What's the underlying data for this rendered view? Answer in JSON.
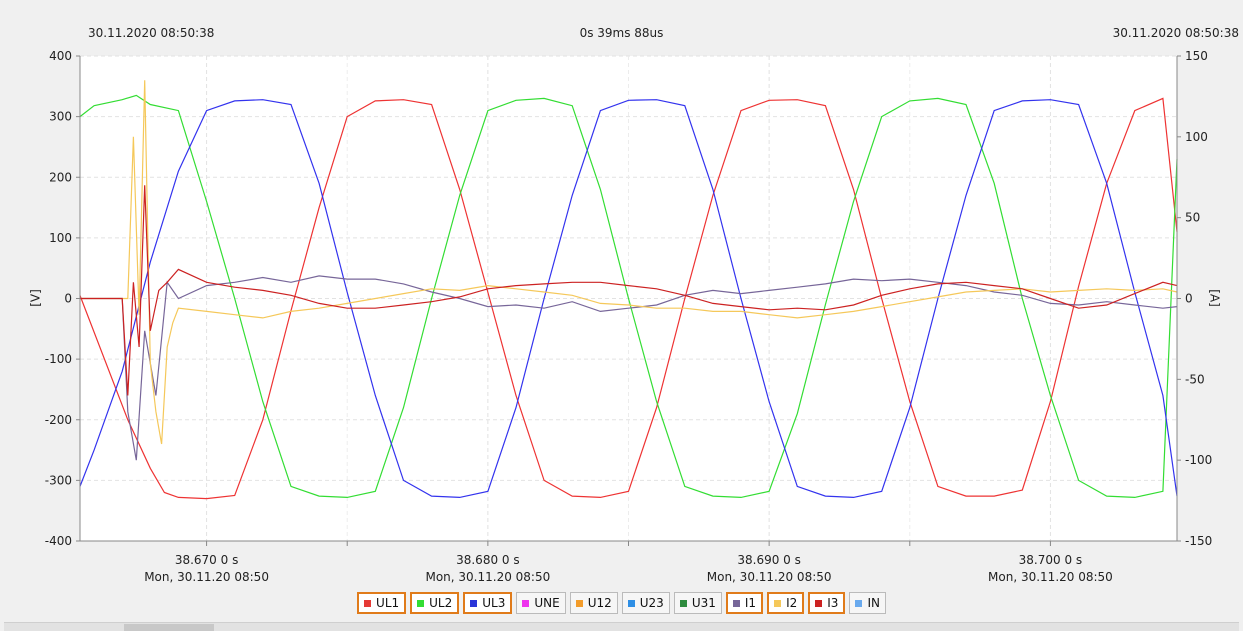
{
  "header": {
    "start_time": "30.11.2020 08:50:38",
    "duration": "0s 39ms 88us",
    "end_time": "30.11.2020 08:50:38"
  },
  "chart_data": {
    "type": "line",
    "left_axis": {
      "label": "[V]",
      "ylim": [
        -400,
        400
      ],
      "ticks": [
        "400",
        "300",
        "200",
        "100",
        "0",
        "-100",
        "-200",
        "-300",
        "-400"
      ]
    },
    "right_axis": {
      "label": "[A]",
      "ylim": [
        -150,
        150
      ],
      "ticks": [
        "150",
        "100",
        "50",
        "0",
        "-50",
        "-100",
        "-150"
      ]
    },
    "xlim": [
      38.6655,
      38.7045
    ],
    "x_ticks": [
      {
        "x": 38.67,
        "label": "38.670   0 s",
        "date": "Mon, 30.11.20 08:50"
      },
      {
        "x": 38.68,
        "label": "38.680   0 s",
        "date": "Mon, 30.11.20 08:50"
      },
      {
        "x": 38.69,
        "label": "38.690   0 s",
        "date": "Mon, 30.11.20 08:50"
      },
      {
        "x": 38.7,
        "label": "38.700   0 s",
        "date": "Mon, 30.11.20 08:50"
      }
    ],
    "grid": true,
    "legend_placement": "bottom-center",
    "series": [
      {
        "name": "UL1",
        "color": "#ee3333",
        "axis": "left",
        "points": [
          [
            38.6655,
            5
          ],
          [
            38.6672,
            -200
          ],
          [
            38.668,
            -280
          ],
          [
            38.6685,
            -320
          ],
          [
            38.669,
            -328
          ],
          [
            38.67,
            -330
          ],
          [
            38.671,
            -325
          ],
          [
            38.672,
            -200
          ],
          [
            38.673,
            -20
          ],
          [
            38.674,
            150
          ],
          [
            38.675,
            300
          ],
          [
            38.676,
            326
          ],
          [
            38.677,
            328
          ],
          [
            38.678,
            320
          ],
          [
            38.679,
            180
          ],
          [
            38.68,
            10
          ],
          [
            38.681,
            -160
          ],
          [
            38.682,
            -300
          ],
          [
            38.683,
            -326
          ],
          [
            38.684,
            -328
          ],
          [
            38.685,
            -318
          ],
          [
            38.686,
            -180
          ],
          [
            38.687,
            0
          ],
          [
            38.688,
            170
          ],
          [
            38.689,
            310
          ],
          [
            38.69,
            327
          ],
          [
            38.691,
            328
          ],
          [
            38.692,
            318
          ],
          [
            38.693,
            180
          ],
          [
            38.694,
            0
          ],
          [
            38.695,
            -170
          ],
          [
            38.696,
            -310
          ],
          [
            38.697,
            -326
          ],
          [
            38.698,
            -326
          ],
          [
            38.699,
            -316
          ],
          [
            38.7,
            -170
          ],
          [
            38.701,
            20
          ],
          [
            38.702,
            190
          ],
          [
            38.703,
            310
          ],
          [
            38.704,
            330
          ],
          [
            38.7045,
            110
          ]
        ]
      },
      {
        "name": "UL2",
        "color": "#33dd33",
        "axis": "left",
        "points": [
          [
            38.6655,
            300
          ],
          [
            38.666,
            318
          ],
          [
            38.667,
            328
          ],
          [
            38.6675,
            335
          ],
          [
            38.668,
            320
          ],
          [
            38.669,
            310
          ],
          [
            38.67,
            160
          ],
          [
            38.671,
            0
          ],
          [
            38.672,
            -170
          ],
          [
            38.673,
            -310
          ],
          [
            38.674,
            -326
          ],
          [
            38.675,
            -328
          ],
          [
            38.676,
            -318
          ],
          [
            38.677,
            -180
          ],
          [
            38.678,
            0
          ],
          [
            38.679,
            170
          ],
          [
            38.68,
            310
          ],
          [
            38.681,
            327
          ],
          [
            38.682,
            330
          ],
          [
            38.683,
            318
          ],
          [
            38.684,
            180
          ],
          [
            38.685,
            0
          ],
          [
            38.686,
            -170
          ],
          [
            38.687,
            -310
          ],
          [
            38.688,
            -326
          ],
          [
            38.689,
            -328
          ],
          [
            38.69,
            -318
          ],
          [
            38.691,
            -190
          ],
          [
            38.692,
            -10
          ],
          [
            38.693,
            160
          ],
          [
            38.694,
            300
          ],
          [
            38.695,
            326
          ],
          [
            38.696,
            330
          ],
          [
            38.697,
            320
          ],
          [
            38.698,
            190
          ],
          [
            38.699,
            0
          ],
          [
            38.7,
            -160
          ],
          [
            38.701,
            -300
          ],
          [
            38.702,
            -326
          ],
          [
            38.703,
            -328
          ],
          [
            38.704,
            -318
          ],
          [
            38.7045,
            230
          ]
        ]
      },
      {
        "name": "UL3",
        "color": "#3333ee",
        "axis": "left",
        "points": [
          [
            38.6655,
            -310
          ],
          [
            38.666,
            -250
          ],
          [
            38.667,
            -120
          ],
          [
            38.668,
            60
          ],
          [
            38.669,
            210
          ],
          [
            38.67,
            310
          ],
          [
            38.671,
            326
          ],
          [
            38.672,
            328
          ],
          [
            38.673,
            320
          ],
          [
            38.674,
            190
          ],
          [
            38.675,
            10
          ],
          [
            38.676,
            -160
          ],
          [
            38.677,
            -300
          ],
          [
            38.678,
            -326
          ],
          [
            38.679,
            -328
          ],
          [
            38.68,
            -318
          ],
          [
            38.681,
            -180
          ],
          [
            38.682,
            0
          ],
          [
            38.683,
            170
          ],
          [
            38.684,
            310
          ],
          [
            38.685,
            327
          ],
          [
            38.686,
            328
          ],
          [
            38.687,
            318
          ],
          [
            38.688,
            180
          ],
          [
            38.689,
            0
          ],
          [
            38.69,
            -170
          ],
          [
            38.691,
            -310
          ],
          [
            38.692,
            -326
          ],
          [
            38.693,
            -328
          ],
          [
            38.694,
            -318
          ],
          [
            38.695,
            -180
          ],
          [
            38.696,
            0
          ],
          [
            38.697,
            170
          ],
          [
            38.698,
            310
          ],
          [
            38.699,
            326
          ],
          [
            38.7,
            328
          ],
          [
            38.701,
            320
          ],
          [
            38.702,
            190
          ],
          [
            38.703,
            10
          ],
          [
            38.704,
            -160
          ],
          [
            38.7045,
            -326
          ]
        ]
      },
      {
        "name": "I1",
        "color": "#776699",
        "axis": "right",
        "points": [
          [
            38.6655,
            0
          ],
          [
            38.667,
            0
          ],
          [
            38.6672,
            -70
          ],
          [
            38.6675,
            -100
          ],
          [
            38.6678,
            -20
          ],
          [
            38.6682,
            -60
          ],
          [
            38.6686,
            10
          ],
          [
            38.669,
            0
          ],
          [
            38.67,
            8
          ],
          [
            38.671,
            10
          ],
          [
            38.672,
            13
          ],
          [
            38.673,
            10
          ],
          [
            38.674,
            14
          ],
          [
            38.675,
            12
          ],
          [
            38.676,
            12
          ],
          [
            38.677,
            9
          ],
          [
            38.678,
            4
          ],
          [
            38.679,
            0
          ],
          [
            38.68,
            -5
          ],
          [
            38.681,
            -4
          ],
          [
            38.682,
            -6
          ],
          [
            38.683,
            -2
          ],
          [
            38.684,
            -8
          ],
          [
            38.685,
            -6
          ],
          [
            38.686,
            -4
          ],
          [
            38.687,
            2
          ],
          [
            38.688,
            5
          ],
          [
            38.689,
            3
          ],
          [
            38.69,
            5
          ],
          [
            38.691,
            7
          ],
          [
            38.692,
            9
          ],
          [
            38.693,
            12
          ],
          [
            38.694,
            11
          ],
          [
            38.695,
            12
          ],
          [
            38.696,
            10
          ],
          [
            38.697,
            8
          ],
          [
            38.698,
            4
          ],
          [
            38.699,
            2
          ],
          [
            38.7,
            -3
          ],
          [
            38.701,
            -4
          ],
          [
            38.702,
            -2
          ],
          [
            38.703,
            -4
          ],
          [
            38.704,
            -6
          ],
          [
            38.7045,
            -5
          ]
        ]
      },
      {
        "name": "I2",
        "color": "#f5c85a",
        "axis": "right",
        "points": [
          [
            38.6655,
            0
          ],
          [
            38.6672,
            0
          ],
          [
            38.6674,
            100
          ],
          [
            38.6676,
            -10
          ],
          [
            38.6678,
            135
          ],
          [
            38.668,
            -40
          ],
          [
            38.6682,
            -70
          ],
          [
            38.6684,
            -90
          ],
          [
            38.6686,
            -30
          ],
          [
            38.6688,
            -15
          ],
          [
            38.669,
            -6
          ],
          [
            38.67,
            -8
          ],
          [
            38.671,
            -10
          ],
          [
            38.672,
            -12
          ],
          [
            38.673,
            -8
          ],
          [
            38.674,
            -6
          ],
          [
            38.675,
            -3
          ],
          [
            38.676,
            0
          ],
          [
            38.677,
            3
          ],
          [
            38.678,
            6
          ],
          [
            38.679,
            5
          ],
          [
            38.68,
            8
          ],
          [
            38.681,
            6
          ],
          [
            38.682,
            4
          ],
          [
            38.683,
            2
          ],
          [
            38.684,
            -3
          ],
          [
            38.685,
            -4
          ],
          [
            38.686,
            -6
          ],
          [
            38.687,
            -6
          ],
          [
            38.688,
            -8
          ],
          [
            38.689,
            -8
          ],
          [
            38.69,
            -10
          ],
          [
            38.691,
            -12
          ],
          [
            38.692,
            -10
          ],
          [
            38.693,
            -8
          ],
          [
            38.694,
            -5
          ],
          [
            38.695,
            -2
          ],
          [
            38.696,
            1
          ],
          [
            38.697,
            4
          ],
          [
            38.698,
            5
          ],
          [
            38.699,
            6
          ],
          [
            38.7,
            4
          ],
          [
            38.701,
            5
          ],
          [
            38.702,
            6
          ],
          [
            38.703,
            5
          ],
          [
            38.704,
            6
          ],
          [
            38.7045,
            4
          ]
        ]
      },
      {
        "name": "I3",
        "color": "#cc2222",
        "axis": "right",
        "points": [
          [
            38.6655,
            0
          ],
          [
            38.667,
            0
          ],
          [
            38.6672,
            -60
          ],
          [
            38.6674,
            10
          ],
          [
            38.6676,
            -30
          ],
          [
            38.6678,
            70
          ],
          [
            38.668,
            -20
          ],
          [
            38.6683,
            5
          ],
          [
            38.6686,
            10
          ],
          [
            38.669,
            18
          ],
          [
            38.67,
            10
          ],
          [
            38.671,
            7
          ],
          [
            38.672,
            5
          ],
          [
            38.673,
            2
          ],
          [
            38.674,
            -3
          ],
          [
            38.675,
            -6
          ],
          [
            38.676,
            -6
          ],
          [
            38.677,
            -4
          ],
          [
            38.678,
            -2
          ],
          [
            38.679,
            1
          ],
          [
            38.68,
            6
          ],
          [
            38.681,
            8
          ],
          [
            38.682,
            9
          ],
          [
            38.683,
            10
          ],
          [
            38.684,
            10
          ],
          [
            38.685,
            8
          ],
          [
            38.686,
            6
          ],
          [
            38.687,
            2
          ],
          [
            38.688,
            -3
          ],
          [
            38.689,
            -5
          ],
          [
            38.69,
            -7
          ],
          [
            38.691,
            -6
          ],
          [
            38.692,
            -7
          ],
          [
            38.693,
            -4
          ],
          [
            38.694,
            2
          ],
          [
            38.695,
            6
          ],
          [
            38.696,
            9
          ],
          [
            38.697,
            10
          ],
          [
            38.698,
            8
          ],
          [
            38.699,
            6
          ],
          [
            38.7,
            0
          ],
          [
            38.701,
            -6
          ],
          [
            38.702,
            -4
          ],
          [
            38.703,
            3
          ],
          [
            38.704,
            10
          ],
          [
            38.7045,
            8
          ]
        ]
      }
    ]
  },
  "legend": [
    {
      "label": "UL1",
      "color": "#e53935",
      "active": true
    },
    {
      "label": "UL2",
      "color": "#33dd33",
      "active": true
    },
    {
      "label": "UL3",
      "color": "#2a35d8",
      "active": true
    },
    {
      "label": "UNE",
      "color": "#ee33ee",
      "active": false
    },
    {
      "label": "U12",
      "color": "#f39c2a",
      "active": false
    },
    {
      "label": "U23",
      "color": "#2f8fe5",
      "active": false
    },
    {
      "label": "U31",
      "color": "#2e8b3e",
      "active": false
    },
    {
      "label": "I1",
      "color": "#776699",
      "active": true
    },
    {
      "label": "I2",
      "color": "#f5c85a",
      "active": true
    },
    {
      "label": "I3",
      "color": "#cc2222",
      "active": true
    },
    {
      "label": "IN",
      "color": "#6aaaee",
      "active": false
    }
  ]
}
